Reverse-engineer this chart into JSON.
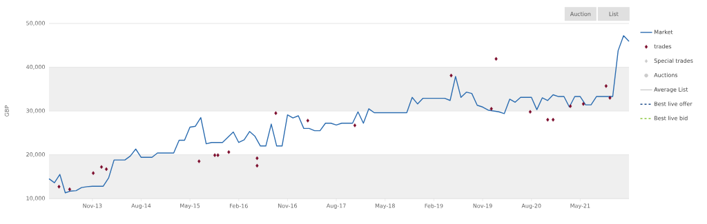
{
  "chart_data": {
    "type": "line",
    "ylabel": "GBP",
    "xlim": [
      "2013-03",
      "2022-02"
    ],
    "ylim": [
      10000,
      50000
    ],
    "xticks": [
      {
        "value": "2013-11",
        "label": "Nov-13"
      },
      {
        "value": "2014-08",
        "label": "Aug-14"
      },
      {
        "value": "2015-05",
        "label": "May-15"
      },
      {
        "value": "2016-02",
        "label": "Feb-16"
      },
      {
        "value": "2016-11",
        "label": "Nov-16"
      },
      {
        "value": "2017-08",
        "label": "Aug-17"
      },
      {
        "value": "2018-05",
        "label": "May-18"
      },
      {
        "value": "2019-02",
        "label": "Feb-19"
      },
      {
        "value": "2019-11",
        "label": "Nov-19"
      },
      {
        "value": "2020-08",
        "label": "Aug-20"
      },
      {
        "value": "2021-05",
        "label": "May-21"
      }
    ],
    "yticks": [
      {
        "value": 10000,
        "label": "10,000"
      },
      {
        "value": 20000,
        "label": "20,000"
      },
      {
        "value": 30000,
        "label": "30,000"
      },
      {
        "value": 40000,
        "label": "40,000"
      },
      {
        "value": 50000,
        "label": "50,000"
      }
    ],
    "grid": "y",
    "legend": "right",
    "bands": [
      {
        "axis": "y",
        "from": 10000,
        "to": 20000,
        "color": "#efefef"
      },
      {
        "axis": "y",
        "from": 30000,
        "to": 40000,
        "color": "#efefef"
      }
    ],
    "annotations": [
      "Auction",
      "List"
    ],
    "series": [
      {
        "name": "Market",
        "color": "#2b6cb0",
        "marker": "none",
        "x": [
          "2013-03",
          "2013-04",
          "2013-05",
          "2013-06",
          "2013-07",
          "2013-08",
          "2013-09",
          "2013-10",
          "2013-11",
          "2014-01",
          "2014-02",
          "2014-03",
          "2014-05",
          "2014-06",
          "2014-07",
          "2014-08",
          "2014-10",
          "2014-11",
          "2015-02",
          "2015-03",
          "2015-04",
          "2015-05",
          "2015-06",
          "2015-07",
          "2015-08",
          "2015-09",
          "2015-11",
          "2016-01",
          "2016-02",
          "2016-03",
          "2016-04",
          "2016-05",
          "2016-06",
          "2016-07",
          "2016-08",
          "2016-09",
          "2016-10",
          "2016-11",
          "2016-12",
          "2017-01",
          "2017-02",
          "2017-03",
          "2017-04",
          "2017-05",
          "2017-06",
          "2017-07",
          "2017-08",
          "2017-09",
          "2017-11",
          "2017-12",
          "2018-01",
          "2018-02",
          "2018-03",
          "2018-09",
          "2018-10",
          "2018-11",
          "2018-12",
          "2019-04",
          "2019-05",
          "2019-06",
          "2019-07",
          "2019-08",
          "2019-09",
          "2019-10",
          "2019-11",
          "2019-12",
          "2020-01",
          "2020-02",
          "2020-03",
          "2020-04",
          "2020-05",
          "2020-06",
          "2020-08",
          "2020-09",
          "2020-10",
          "2020-11",
          "2020-12",
          "2021-01",
          "2021-02",
          "2021-03",
          "2021-04",
          "2021-05",
          "2021-06",
          "2021-07",
          "2021-08",
          "2021-11",
          "2021-12",
          "2022-01",
          "2022-02"
        ],
        "values": [
          14500,
          13600,
          15500,
          11300,
          11700,
          11800,
          12500,
          12700,
          12800,
          12800,
          14700,
          18800,
          18800,
          19700,
          21300,
          19400,
          19400,
          20400,
          20400,
          23300,
          23300,
          26300,
          26500,
          28500,
          22500,
          22800,
          22800,
          25200,
          22800,
          23400,
          25300,
          24200,
          22000,
          22000,
          27000,
          22000,
          22000,
          29100,
          28400,
          28900,
          26000,
          26000,
          25500,
          25500,
          27200,
          27200,
          26800,
          27200,
          27200,
          29800,
          27200,
          30500,
          29600,
          29600,
          33100,
          31600,
          32900,
          32900,
          32400,
          37900,
          33100,
          34300,
          34000,
          31300,
          30900,
          30200,
          30000,
          29800,
          29400,
          32700,
          32000,
          33100,
          33100,
          30300,
          33000,
          32400,
          33700,
          33300,
          33300,
          30900,
          33300,
          33300,
          31400,
          31400,
          33300,
          33300,
          43800,
          47200,
          45900
        ]
      },
      {
        "name": "trades",
        "type": "scatter",
        "color": "#7b0b2b",
        "marker": "diamond",
        "x": [
          "2013-04-27",
          "2013-06-26",
          "2013-11-06",
          "2013-12-22",
          "2014-01-19",
          "2015-06-22",
          "2015-09-19",
          "2015-10-06",
          "2015-12-06",
          "2016-05-13",
          "2016-05-13",
          "2016-08-27",
          "2017-02-24",
          "2017-11-14",
          "2019-05-07",
          "2019-12-20",
          "2020-01-16",
          "2020-07-25",
          "2020-11-01",
          "2020-12-01",
          "2021-03-07",
          "2021-05-19",
          "2021-09-25",
          "2021-10-16"
        ],
        "values": [
          12700,
          12100,
          15800,
          17200,
          16700,
          18500,
          19900,
          19900,
          20600,
          19200,
          17500,
          29500,
          27800,
          26700,
          38100,
          30500,
          41900,
          29800,
          28000,
          28000,
          31100,
          31600,
          35700,
          33000
        ]
      },
      {
        "name": "Special trades",
        "type": "scatter",
        "color": "#cccccc",
        "marker": "diamond"
      },
      {
        "name": "Auctions",
        "type": "scatter",
        "color": "#cccccc",
        "marker": "circle"
      },
      {
        "name": "Average List",
        "type": "line",
        "color": "#cccccc",
        "marker": "none"
      },
      {
        "name": "Best live offer",
        "type": "line",
        "color": "#1f4e8c",
        "marker": "none",
        "line_style": "dashed"
      },
      {
        "name": "Best live bid",
        "type": "line",
        "color": "#8cc63f",
        "marker": "none",
        "line_style": "dashed"
      }
    ]
  }
}
